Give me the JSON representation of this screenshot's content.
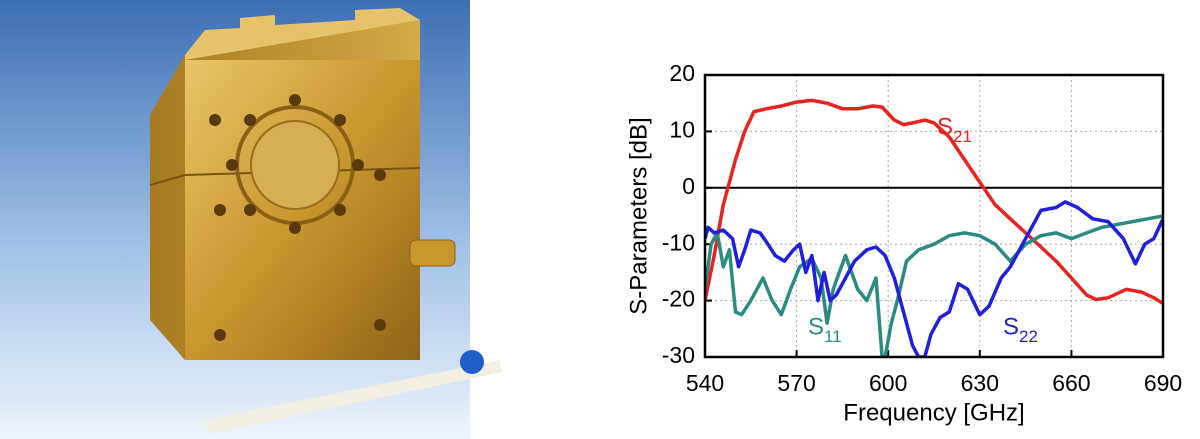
{
  "chart_data": {
    "type": "line",
    "xlabel": "Frequency  [GHz]",
    "ylabel": "S-Parameters  [dB]",
    "xlim": [
      540,
      690
    ],
    "xticks": [
      540,
      570,
      600,
      630,
      660,
      690
    ],
    "ylim": [
      -30,
      20
    ],
    "yticks": [
      -30,
      -20,
      -10,
      0,
      10,
      20
    ],
    "grid": true,
    "series": [
      {
        "name": "S21",
        "color": "#e8231f",
        "x": [
          540,
          543,
          546,
          548,
          550,
          553,
          556,
          560,
          565,
          570,
          575,
          580,
          585,
          590,
          595,
          598,
          602,
          605,
          608,
          612,
          615,
          620,
          625,
          630,
          635,
          640,
          645,
          650,
          655,
          660,
          665,
          668,
          672,
          678,
          683,
          687,
          690
        ],
        "values": [
          -20,
          -12,
          -3,
          1,
          5,
          10,
          13.5,
          14,
          14.5,
          15.2,
          15.5,
          15,
          14,
          14,
          14.5,
          14.3,
          12,
          11.2,
          11.5,
          12,
          11.5,
          9,
          5,
          1,
          -3,
          -5.5,
          -8,
          -10.5,
          -13,
          -16,
          -19,
          -19.8,
          -19.5,
          -18,
          -18.5,
          -19.5,
          -20.5
        ]
      },
      {
        "name": "S11",
        "color": "#2a8c80",
        "x": [
          540,
          542,
          544,
          546,
          548,
          550,
          552,
          555,
          557,
          559,
          562,
          565,
          568,
          571,
          575,
          578,
          580,
          582,
          584,
          586,
          590,
          593,
          596,
          598,
          599,
          601,
          603,
          606,
          610,
          615,
          620,
          625,
          630,
          635,
          640,
          645,
          650,
          655,
          660,
          665,
          670,
          675,
          680,
          685,
          690
        ],
        "values": [
          -18,
          -10,
          -8,
          -14,
          -11,
          -22,
          -22.5,
          -20,
          -18,
          -16,
          -20,
          -22.5,
          -18,
          -14,
          -12.5,
          -16,
          -24,
          -18,
          -15,
          -12,
          -18,
          -20,
          -16,
          -30,
          -30,
          -24,
          -20,
          -13,
          -11,
          -10,
          -8.5,
          -8,
          -8.5,
          -10,
          -13,
          -10,
          -8.5,
          -8,
          -9,
          -8,
          -7,
          -6.5,
          -6,
          -5.5,
          -5
        ]
      },
      {
        "name": "S22",
        "color": "#1f1fdc",
        "x": [
          540,
          541,
          543,
          546,
          549,
          551,
          553,
          555,
          558,
          560,
          563,
          566,
          569,
          571,
          573,
          575,
          577,
          579,
          581,
          583,
          586,
          589,
          593,
          596,
          599,
          602,
          605,
          608,
          610,
          612,
          614,
          617,
          620,
          623,
          626,
          630,
          633,
          637,
          640,
          645,
          650,
          655,
          658,
          662,
          667,
          672,
          677,
          681,
          684,
          687,
          690
        ],
        "values": [
          -9,
          -7,
          -8,
          -7.5,
          -9,
          -14,
          -11,
          -7.5,
          -8,
          -9.5,
          -12,
          -13,
          -11,
          -10,
          -15,
          -12,
          -20,
          -15,
          -20,
          -19,
          -16,
          -13,
          -11,
          -10.5,
          -12,
          -16,
          -22,
          -28,
          -30,
          -30,
          -26,
          -23,
          -22,
          -17,
          -18,
          -22.5,
          -21,
          -16,
          -14,
          -9,
          -4,
          -3.5,
          -2.5,
          -3.5,
          -5.5,
          -6,
          -9,
          -13.5,
          -10,
          -9,
          -5.5
        ]
      }
    ]
  }
}
